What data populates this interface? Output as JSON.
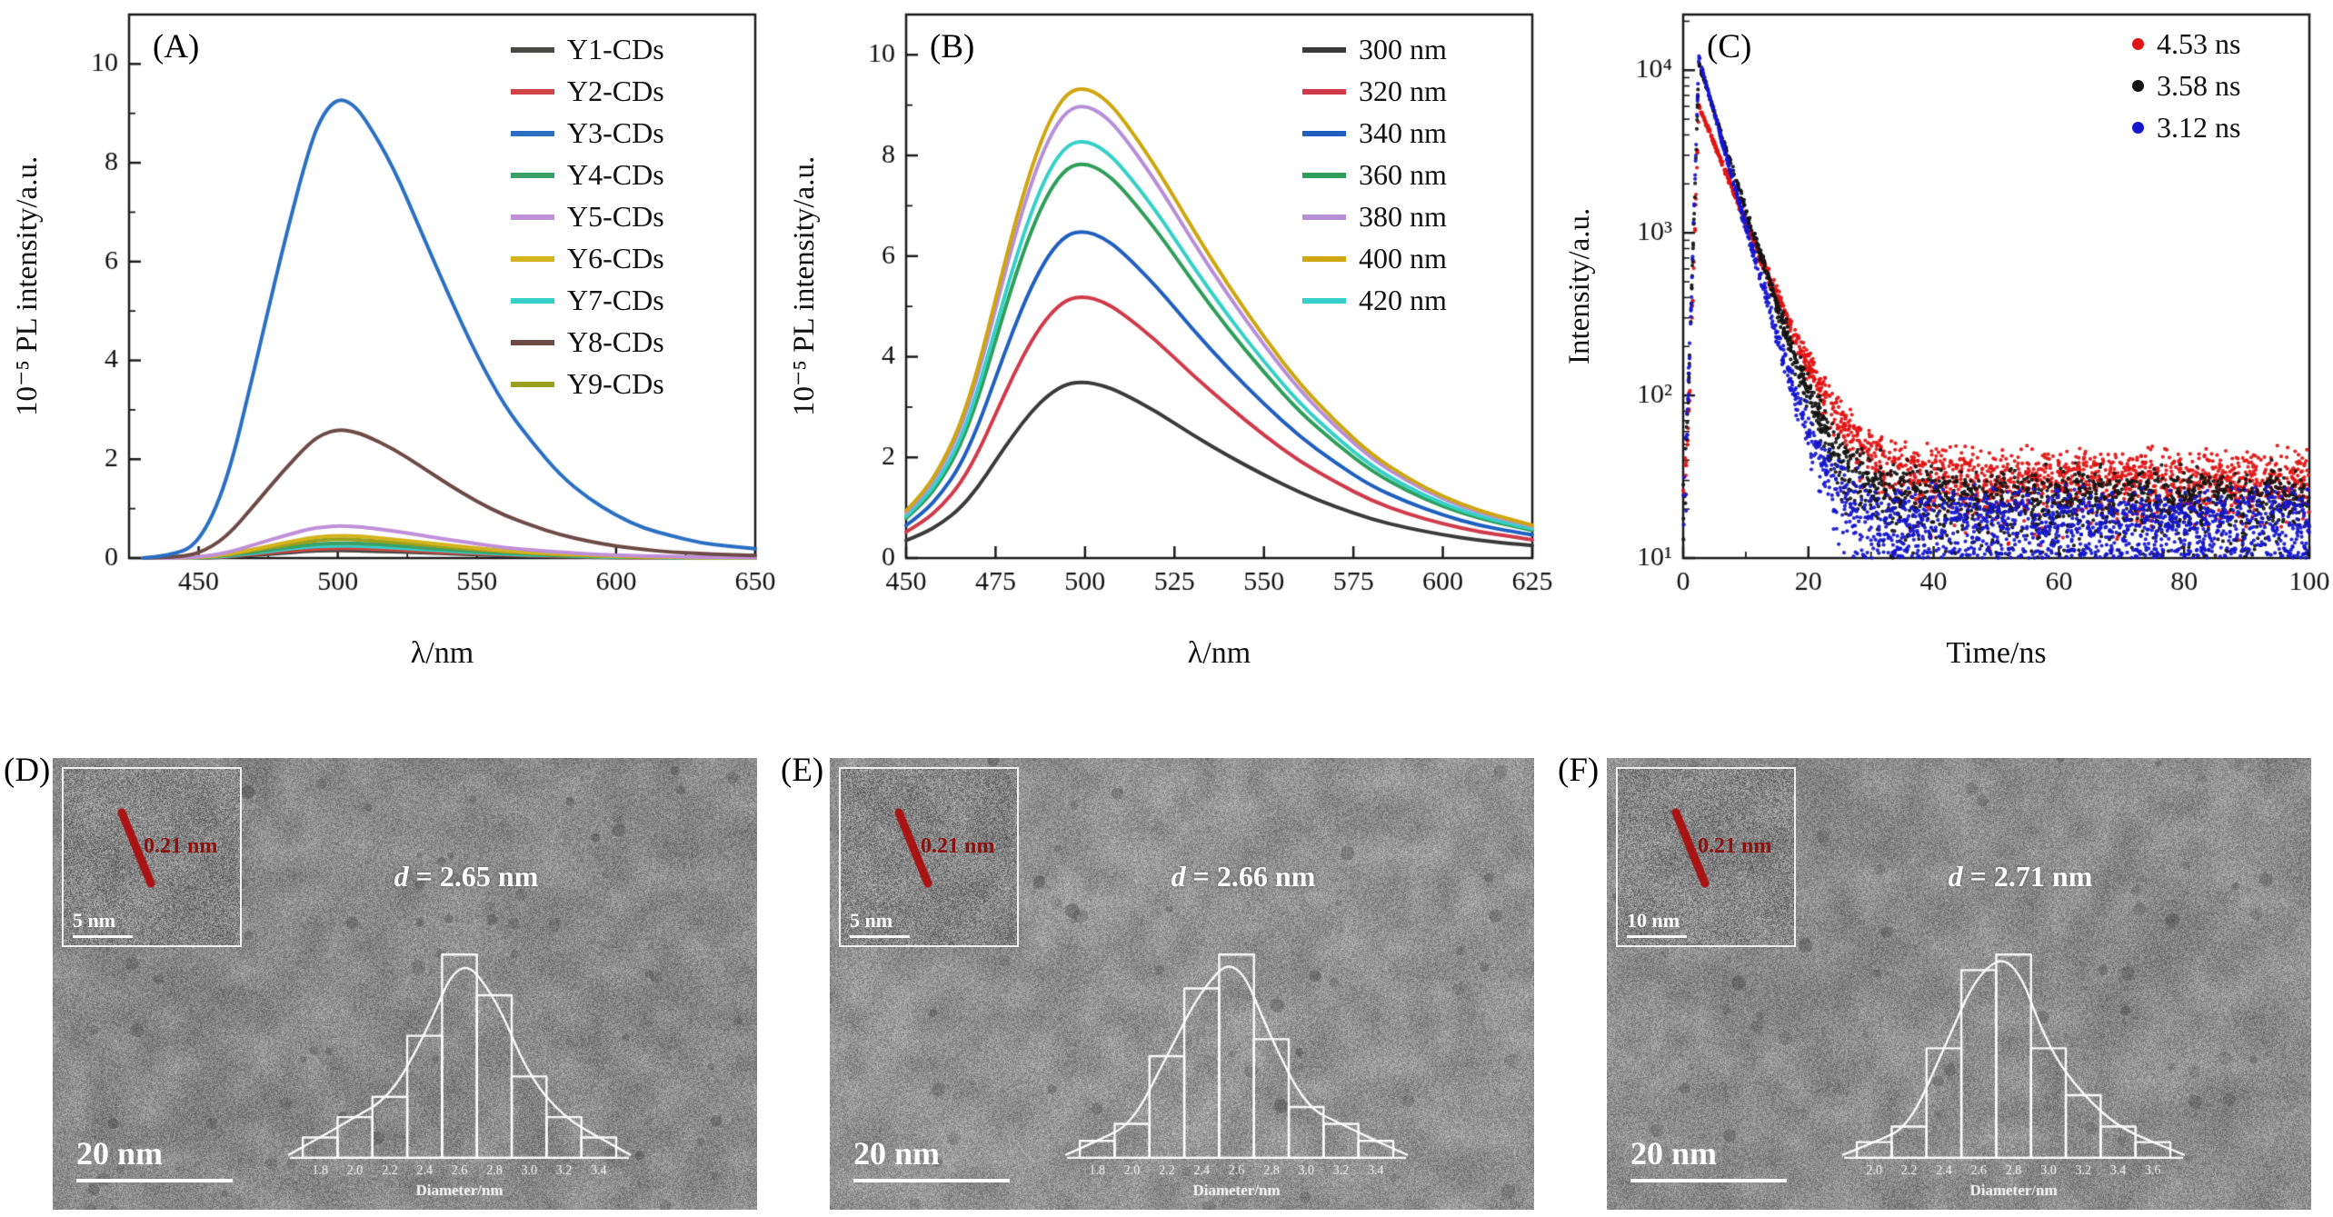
{
  "chart_data": [
    {
      "id": "A",
      "type": "line",
      "panel_label": "(A)",
      "xlabel": "λ/nm",
      "ylabel": "10⁻⁵ PL intensity/a.u.",
      "xlim": [
        425,
        650
      ],
      "ylim": [
        0,
        11
      ],
      "xticks": [
        450,
        500,
        550,
        600,
        650
      ],
      "xticks_minor": [
        475,
        525,
        575,
        625
      ],
      "yticks": [
        0,
        2,
        4,
        6,
        8,
        10
      ],
      "yticks_minor": [
        1,
        3,
        5,
        7,
        9
      ],
      "legend_position": "top-right",
      "grid": false,
      "x": [
        430,
        440,
        450,
        460,
        470,
        480,
        490,
        495,
        500,
        505,
        510,
        520,
        530,
        540,
        550,
        560,
        570,
        580,
        590,
        600,
        610,
        620,
        630,
        640,
        650
      ],
      "series": [
        {
          "name": "Y1-CDs",
          "color": "#4a4a44",
          "values": [
            0,
            0,
            0,
            0.02,
            0.06,
            0.1,
            0.14,
            0.15,
            0.15,
            0.15,
            0.14,
            0.13,
            0.11,
            0.09,
            0.07,
            0.05,
            0.04,
            0.03,
            0.02,
            0.01,
            0.01,
            0.01,
            0,
            0,
            0
          ]
        },
        {
          "name": "Y2-CDs",
          "color": "#cf4446",
          "values": [
            0,
            0,
            0.01,
            0.03,
            0.08,
            0.13,
            0.18,
            0.19,
            0.2,
            0.2,
            0.19,
            0.17,
            0.14,
            0.11,
            0.09,
            0.07,
            0.05,
            0.04,
            0.03,
            0.02,
            0.01,
            0.01,
            0.01,
            0,
            0
          ]
        },
        {
          "name": "Y3-CDs",
          "color": "#2a6fc4",
          "values": [
            0,
            0.05,
            0.28,
            1.49,
            3.81,
            6.23,
            8.37,
            9.02,
            9.3,
            9.21,
            8.88,
            7.91,
            6.6,
            5.3,
            4.09,
            3.07,
            2.33,
            1.67,
            1.21,
            0.86,
            0.6,
            0.45,
            0.31,
            0.24,
            0.19
          ]
        },
        {
          "name": "Y4-CDs",
          "color": "#3aa06a",
          "values": [
            0,
            0,
            0.01,
            0.05,
            0.12,
            0.2,
            0.27,
            0.29,
            0.3,
            0.3,
            0.29,
            0.26,
            0.21,
            0.17,
            0.13,
            0.1,
            0.08,
            0.05,
            0.04,
            0.03,
            0.02,
            0.01,
            0.01,
            0.01,
            0
          ]
        },
        {
          "name": "Y5-CDs",
          "color": "#c08fd9",
          "values": [
            0,
            0,
            0.02,
            0.1,
            0.27,
            0.44,
            0.59,
            0.63,
            0.65,
            0.64,
            0.62,
            0.55,
            0.46,
            0.37,
            0.29,
            0.21,
            0.16,
            0.12,
            0.08,
            0.06,
            0.04,
            0.03,
            0.02,
            0.02,
            0.01
          ]
        },
        {
          "name": "Y6-CDs",
          "color": "#d4b31c",
          "values": [
            0,
            0,
            0.01,
            0.07,
            0.18,
            0.3,
            0.41,
            0.44,
            0.45,
            0.45,
            0.43,
            0.38,
            0.32,
            0.26,
            0.2,
            0.15,
            0.11,
            0.08,
            0.06,
            0.04,
            0.03,
            0.02,
            0.01,
            0.01,
            0.01
          ]
        },
        {
          "name": "Y7-CDs",
          "color": "#35d0c8",
          "values": [
            0,
            0,
            0.01,
            0.04,
            0.1,
            0.17,
            0.23,
            0.24,
            0.25,
            0.25,
            0.24,
            0.21,
            0.18,
            0.14,
            0.11,
            0.08,
            0.06,
            0.05,
            0.03,
            0.02,
            0.02,
            0.01,
            0.01,
            0,
            0
          ]
        },
        {
          "name": "Y8-CDs",
          "color": "#6d4a46",
          "values": [
            0,
            0.01,
            0.08,
            0.42,
            1.07,
            1.74,
            2.34,
            2.52,
            2.6,
            2.57,
            2.48,
            2.21,
            1.85,
            1.48,
            1.14,
            0.86,
            0.65,
            0.47,
            0.34,
            0.24,
            0.17,
            0.12,
            0.09,
            0.07,
            0.05
          ]
        },
        {
          "name": "Y9-CDs",
          "color": "#9aa01e",
          "values": [
            0,
            0,
            0.01,
            0.06,
            0.16,
            0.25,
            0.34,
            0.37,
            0.38,
            0.38,
            0.36,
            0.32,
            0.27,
            0.22,
            0.17,
            0.13,
            0.1,
            0.07,
            0.05,
            0.03,
            0.02,
            0.02,
            0.01,
            0.01,
            0.01
          ]
        }
      ]
    },
    {
      "id": "B",
      "type": "line",
      "panel_label": "(B)",
      "xlabel": "λ/nm",
      "ylabel": "10⁻⁵ PL intensity/a.u.",
      "xlim": [
        450,
        625
      ],
      "ylim": [
        0,
        10.8
      ],
      "xticks": [
        450,
        475,
        500,
        525,
        550,
        575,
        600,
        625
      ],
      "xticks_minor": [],
      "yticks": [
        0,
        2,
        4,
        6,
        8,
        10
      ],
      "yticks_minor": [
        1,
        3,
        5,
        7,
        9
      ],
      "legend_position": "top-right",
      "grid": false,
      "x": [
        450,
        455,
        460,
        465,
        470,
        475,
        480,
        485,
        490,
        495,
        500,
        505,
        510,
        520,
        530,
        540,
        550,
        560,
        570,
        580,
        590,
        600,
        610,
        620,
        625
      ],
      "series": [
        {
          "name": "300 nm",
          "color": "#3a3a3a",
          "values": [
            0.35,
            0.49,
            0.7,
            0.98,
            1.4,
            1.93,
            2.45,
            2.91,
            3.26,
            3.47,
            3.5,
            3.43,
            3.29,
            2.91,
            2.45,
            2.03,
            1.65,
            1.3,
            1.02,
            0.77,
            0.6,
            0.46,
            0.35,
            0.28,
            0.25
          ]
        },
        {
          "name": "320 nm",
          "color": "#d03a4a",
          "values": [
            0.52,
            0.73,
            1.04,
            1.46,
            2.08,
            2.86,
            3.64,
            4.32,
            4.84,
            5.15,
            5.2,
            5.1,
            4.89,
            4.32,
            3.64,
            3.02,
            2.44,
            1.92,
            1.51,
            1.14,
            0.88,
            0.68,
            0.52,
            0.42,
            0.36
          ]
        },
        {
          "name": "340 nm",
          "color": "#1f5fc0",
          "values": [
            0.65,
            0.91,
            1.3,
            1.82,
            2.6,
            3.58,
            4.55,
            5.4,
            6.05,
            6.44,
            6.5,
            6.37,
            6.11,
            5.4,
            4.55,
            3.77,
            3.06,
            2.41,
            1.89,
            1.43,
            1.11,
            0.85,
            0.65,
            0.52,
            0.46
          ]
        },
        {
          "name": "360 nm",
          "color": "#2f9e5a",
          "values": [
            0.79,
            1.1,
            1.57,
            2.2,
            3.14,
            4.32,
            5.5,
            6.52,
            7.3,
            7.77,
            7.85,
            7.69,
            7.38,
            6.52,
            5.5,
            4.55,
            3.69,
            2.9,
            2.28,
            1.73,
            1.33,
            1.02,
            0.79,
            0.63,
            0.55
          ]
        },
        {
          "name": "380 nm",
          "color": "#b78fd9",
          "values": [
            0.9,
            1.26,
            1.8,
            2.52,
            3.6,
            4.95,
            6.3,
            7.47,
            8.37,
            8.91,
            9.0,
            8.82,
            8.46,
            7.47,
            6.3,
            5.22,
            4.23,
            3.33,
            2.61,
            1.98,
            1.53,
            1.17,
            0.9,
            0.72,
            0.63
          ]
        },
        {
          "name": "400 nm",
          "color": "#cfa60e",
          "values": [
            0.94,
            1.31,
            1.87,
            2.62,
            3.74,
            5.14,
            6.55,
            7.76,
            8.7,
            9.26,
            9.35,
            9.16,
            8.79,
            7.76,
            6.55,
            5.42,
            4.39,
            3.46,
            2.71,
            2.06,
            1.59,
            1.22,
            0.94,
            0.75,
            0.65
          ]
        },
        {
          "name": "420 nm",
          "color": "#35d0c8",
          "values": [
            0.83,
            1.16,
            1.66,
            2.32,
            3.32,
            4.57,
            5.81,
            6.89,
            7.72,
            8.22,
            8.3,
            8.13,
            7.8,
            6.89,
            5.81,
            4.81,
            3.9,
            3.07,
            2.41,
            1.83,
            1.41,
            1.08,
            0.83,
            0.66,
            0.58
          ]
        }
      ]
    },
    {
      "id": "C",
      "type": "scatter_decay",
      "panel_label": "(C)",
      "xlabel": "Time/ns",
      "ylabel": "Intensity/a.u.",
      "xlim": [
        0,
        100
      ],
      "ylim": [
        10,
        22000
      ],
      "ylog": true,
      "xticks": [
        0,
        20,
        40,
        60,
        80,
        100
      ],
      "xticks_minor": [
        10,
        30,
        50,
        70,
        90
      ],
      "yticks": [
        10,
        100,
        1000,
        10000
      ],
      "ytick_labels": [
        "10¹",
        "10²",
        "10³",
        "10⁴"
      ],
      "legend_position": "top-right",
      "grid": false,
      "series": [
        {
          "name": "4.53 ns",
          "color": "#e11414",
          "tau": 4.53,
          "peak": 6000,
          "background": 30
        },
        {
          "name": "3.58 ns",
          "color": "#141414",
          "tau": 3.58,
          "peak": 11000,
          "background": 22
        },
        {
          "name": "3.12 ns",
          "color": "#1616cf",
          "tau": 3.12,
          "peak": 12000,
          "background": 16
        }
      ]
    }
  ],
  "tem_panels": [
    {
      "id": "D",
      "panel_label": "(D)",
      "scale_bar_label": "20 nm",
      "inset": {
        "lattice_label": "0.21 nm",
        "scale_label": "5 nm"
      },
      "d_label": {
        "symbol": "d",
        "value": "= 2.65 nm"
      },
      "histogram": {
        "xlabel": "Diameter/nm",
        "bin_labels": [
          "1.8",
          "2.0",
          "2.2",
          "2.4",
          "2.6",
          "2.8",
          "3.0",
          "3.2",
          "3.4"
        ],
        "counts": [
          1,
          2,
          3,
          6,
          10,
          8,
          4,
          2,
          1
        ]
      }
    },
    {
      "id": "E",
      "panel_label": "(E)",
      "scale_bar_label": "20 nm",
      "inset": {
        "lattice_label": "0.21 nm",
        "scale_label": "5 nm"
      },
      "d_label": {
        "symbol": "d",
        "value": "= 2.66 nm"
      },
      "histogram": {
        "xlabel": "Diameter/nm",
        "bin_labels": [
          "1.8",
          "2.0",
          "2.2",
          "2.4",
          "2.6",
          "2.8",
          "3.0",
          "3.2",
          "3.4"
        ],
        "counts": [
          1,
          2,
          6,
          10,
          12,
          7,
          3,
          2,
          1
        ]
      }
    },
    {
      "id": "F",
      "panel_label": "(F)",
      "scale_bar_label": "20 nm",
      "inset": {
        "lattice_label": "0.21 nm",
        "scale_label": "10 nm"
      },
      "d_label": {
        "symbol": "d",
        "value": "= 2.71 nm"
      },
      "histogram": {
        "xlabel": "Diameter/nm",
        "bin_labels": [
          "2.0",
          "2.2",
          "2.4",
          "2.6",
          "2.8",
          "3.0",
          "3.2",
          "3.4",
          "3.6"
        ],
        "counts": [
          1,
          2,
          7,
          12,
          13,
          7,
          4,
          2,
          1
        ]
      }
    }
  ]
}
